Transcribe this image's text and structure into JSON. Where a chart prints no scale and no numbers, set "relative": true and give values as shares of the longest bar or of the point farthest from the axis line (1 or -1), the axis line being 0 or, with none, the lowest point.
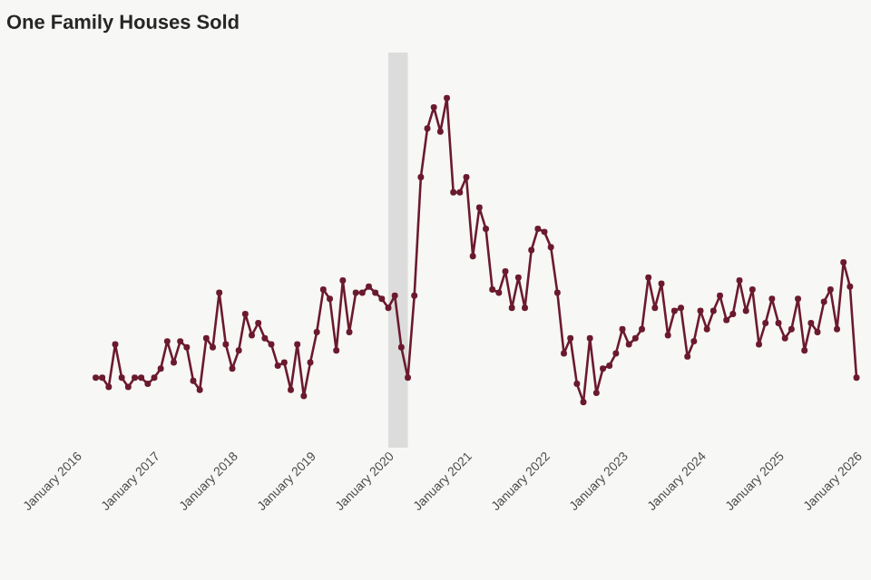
{
  "chart_data": {
    "type": "line",
    "title": "One Family Houses Sold",
    "relative": true,
    "marker": "circle",
    "line_style": "solid",
    "x": [
      "2016-04",
      "2016-05",
      "2016-06",
      "2016-07",
      "2016-08",
      "2016-09",
      "2016-10",
      "2016-11",
      "2016-12",
      "2017-01",
      "2017-02",
      "2017-03",
      "2017-04",
      "2017-05",
      "2017-06",
      "2017-07",
      "2017-08",
      "2017-09",
      "2017-10",
      "2017-11",
      "2017-12",
      "2018-01",
      "2018-02",
      "2018-03",
      "2018-04",
      "2018-05",
      "2018-06",
      "2018-07",
      "2018-08",
      "2018-09",
      "2018-10",
      "2018-11",
      "2018-12",
      "2019-01",
      "2019-02",
      "2019-03",
      "2019-04",
      "2019-05",
      "2019-06",
      "2019-07",
      "2019-08",
      "2019-09",
      "2019-10",
      "2019-11",
      "2019-12",
      "2020-01",
      "2020-02",
      "2020-03",
      "2020-04",
      "2020-05",
      "2020-06",
      "2020-07",
      "2020-08",
      "2020-09",
      "2020-10",
      "2020-11",
      "2020-12",
      "2021-01",
      "2021-02",
      "2021-03",
      "2021-04",
      "2021-05",
      "2021-06",
      "2021-07",
      "2021-08",
      "2021-09",
      "2021-10",
      "2021-11",
      "2021-12",
      "2022-01",
      "2022-02",
      "2022-03",
      "2022-04",
      "2022-05",
      "2022-06",
      "2022-07",
      "2022-08",
      "2022-09",
      "2022-10",
      "2022-11",
      "2022-12",
      "2023-01",
      "2023-02",
      "2023-03",
      "2023-04",
      "2023-05",
      "2023-06",
      "2023-07",
      "2023-08",
      "2023-09",
      "2023-10",
      "2023-11",
      "2023-12",
      "2024-01",
      "2024-02",
      "2024-03",
      "2024-04",
      "2024-05",
      "2024-06",
      "2024-07",
      "2024-08",
      "2024-09",
      "2024-10",
      "2024-11",
      "2024-12",
      "2025-01",
      "2025-02",
      "2025-03",
      "2025-04",
      "2025-05",
      "2025-06",
      "2025-07",
      "2025-08",
      "2025-09",
      "2025-10",
      "2025-11",
      "2025-12",
      "2026-01"
    ],
    "series": [
      {
        "color": "#6b1a2e",
        "values": [
          0.08,
          0.08,
          0.05,
          0.19,
          0.08,
          0.05,
          0.08,
          0.08,
          0.06,
          0.08,
          0.11,
          0.2,
          0.13,
          0.2,
          0.18,
          0.07,
          0.04,
          0.21,
          0.18,
          0.36,
          0.19,
          0.11,
          0.17,
          0.29,
          0.22,
          0.26,
          0.21,
          0.19,
          0.12,
          0.13,
          0.04,
          0.19,
          0.02,
          0.13,
          0.23,
          0.37,
          0.34,
          0.17,
          0.4,
          0.23,
          0.36,
          0.36,
          0.38,
          0.36,
          0.34,
          0.31,
          0.35,
          0.18,
          0.08,
          0.35,
          0.74,
          0.9,
          0.97,
          0.89,
          1.0,
          0.69,
          0.69,
          0.74,
          0.48,
          0.64,
          0.57,
          0.37,
          0.36,
          0.43,
          0.31,
          0.41,
          0.31,
          0.5,
          0.57,
          0.56,
          0.51,
          0.36,
          0.16,
          0.21,
          0.06,
          0,
          0.21,
          0.03,
          0.11,
          0.12,
          0.16,
          0.24,
          0.19,
          0.21,
          0.24,
          0.41,
          0.31,
          0.39,
          0.22,
          0.3,
          0.31,
          0.15,
          0.2,
          0.3,
          0.24,
          0.3,
          0.35,
          0.27,
          0.29,
          0.4,
          0.3,
          0.37,
          0.19,
          0.26,
          0.34,
          0.26,
          0.21,
          0.24,
          0.34,
          0.17,
          0.26,
          0.23,
          0.33,
          0.37,
          0.24,
          0.46,
          0.38,
          0.08
        ]
      }
    ],
    "xlim": [
      "2016-01",
      "2026-01"
    ],
    "xticks": [
      {
        "value": "2016-01",
        "label": "January 2016"
      },
      {
        "value": "2017-01",
        "label": "January 2017"
      },
      {
        "value": "2018-01",
        "label": "January 2018"
      },
      {
        "value": "2019-01",
        "label": "January 2019"
      },
      {
        "value": "2020-01",
        "label": "January 2020"
      },
      {
        "value": "2021-01",
        "label": "January 2021"
      },
      {
        "value": "2022-01",
        "label": "January 2022"
      },
      {
        "value": "2023-01",
        "label": "January 2023"
      },
      {
        "value": "2024-01",
        "label": "January 2024"
      },
      {
        "value": "2025-01",
        "label": "January 2025"
      },
      {
        "value": "2026-01",
        "label": "January 2026"
      }
    ],
    "bands": [
      {
        "axis": "x",
        "from": "2020-01",
        "to": "2020-04",
        "color": "#dcdcdc"
      }
    ]
  }
}
